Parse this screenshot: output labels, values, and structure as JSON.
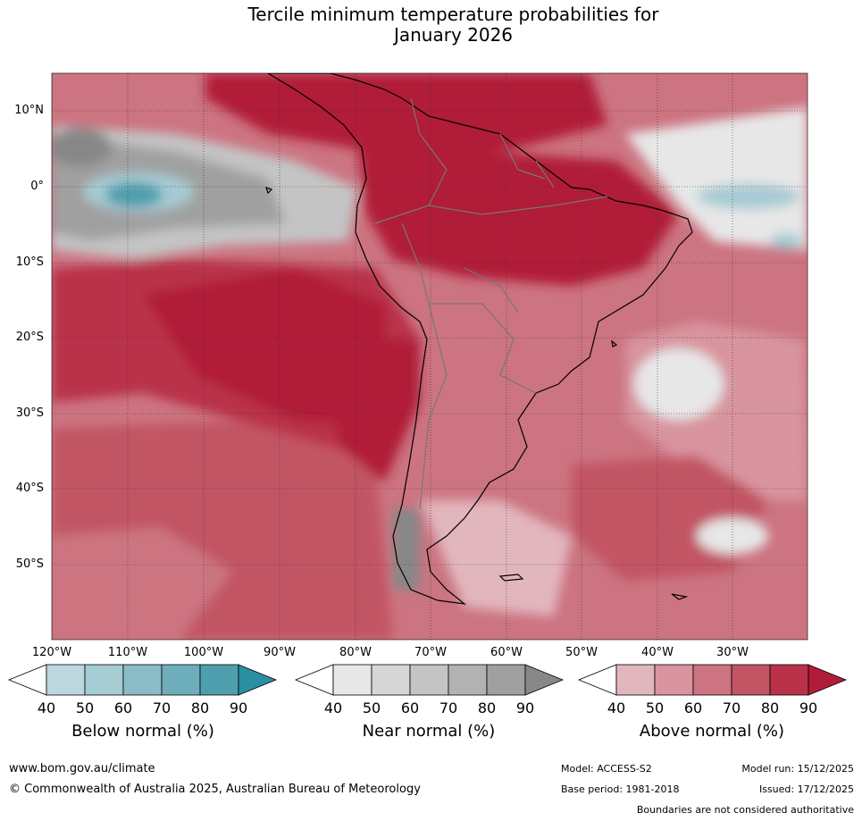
{
  "title_line1": "Tercile minimum temperature probabilities for",
  "title_line2": "January 2026",
  "lat_labels": [
    "10°N",
    "0°",
    "10°S",
    "20°S",
    "30°S",
    "40°S",
    "50°S"
  ],
  "lon_labels": [
    "120°W",
    "110°W",
    "100°W",
    "90°W",
    "80°W",
    "70°W",
    "60°W",
    "50°W",
    "40°W",
    "30°W"
  ],
  "colorbars": [
    {
      "title": "Below normal (%)",
      "ticks": [
        "40",
        "50",
        "60",
        "70",
        "80",
        "90"
      ],
      "colors": [
        "#ffffff",
        "#bcd7dd",
        "#a5cbd3",
        "#89bcc7",
        "#6eaebb",
        "#4f9eae",
        "#2b8ea2"
      ]
    },
    {
      "title": "Near normal (%)",
      "ticks": [
        "40",
        "50",
        "60",
        "70",
        "80",
        "90"
      ],
      "colors": [
        "#ffffff",
        "#e7e7e7",
        "#d6d6d6",
        "#c4c4c4",
        "#b2b2b2",
        "#a0a0a0",
        "#878787"
      ]
    },
    {
      "title": "Above normal (%)",
      "ticks": [
        "40",
        "50",
        "60",
        "70",
        "80",
        "90"
      ],
      "colors": [
        "#ffffff",
        "#e2b6bd",
        "#d8949f",
        "#cc7481",
        "#c25564",
        "#b93248",
        "#b11c39"
      ]
    }
  ],
  "footer": {
    "website": "www.bom.gov.au/climate",
    "copyright": "© Commonwealth of Australia 2025, Australian Bureau of Meteorology",
    "model": "Model: ACCESS-S2",
    "base_period": "Base period: 1981-2018",
    "model_run": "Model run: 15/12/2025",
    "issued": "Issued: 17/12/2025",
    "disclaimer": "Boundaries are not considered authoritative"
  }
}
